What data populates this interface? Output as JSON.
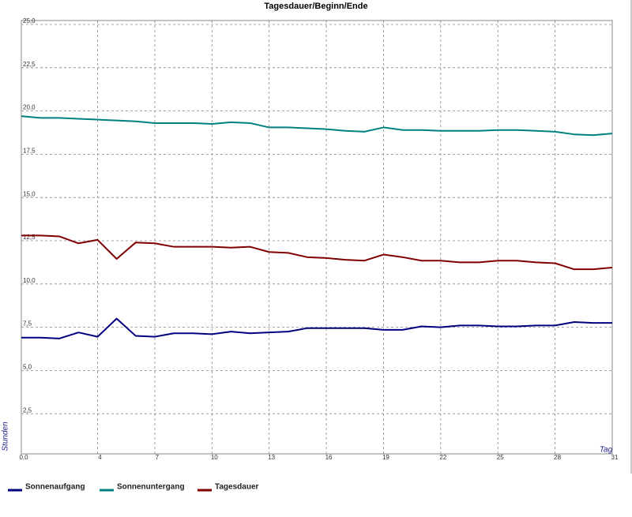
{
  "chart_data": {
    "type": "line",
    "title": "Tagesdauer/Beginn/Ende",
    "x_label": "Tag",
    "y_label": "Stunden",
    "xlim": [
      0,
      31
    ],
    "ylim": [
      0,
      25
    ],
    "grid": true,
    "xticks": [
      {
        "value": 0,
        "label": "0,0"
      },
      4,
      7,
      10,
      13,
      16,
      19,
      22,
      25,
      28,
      31
    ],
    "yticks": [
      {
        "value": 2.5,
        "label": "2,5"
      },
      {
        "value": 5,
        "label": "5,0"
      },
      {
        "value": 7.5,
        "label": "7,5"
      },
      {
        "value": 10,
        "label": "10,0"
      },
      {
        "value": 12.5,
        "label": "12,5"
      },
      {
        "value": 15,
        "label": "15,0"
      },
      {
        "value": 17.5,
        "label": "17,5"
      },
      {
        "value": 20,
        "label": "20,0"
      },
      {
        "value": 22.5,
        "label": "22,5"
      },
      {
        "value": 25,
        "label": "25,0"
      }
    ],
    "x": [
      0,
      1,
      2,
      3,
      4,
      5,
      6,
      7,
      8,
      9,
      10,
      11,
      12,
      13,
      14,
      15,
      16,
      17,
      18,
      19,
      20,
      21,
      22,
      23,
      24,
      25,
      26,
      27,
      28,
      29,
      30,
      31
    ],
    "series": [
      {
        "name": "Sonnenaufgang",
        "color": "#00007f",
        "values": [
          6.9,
          6.9,
          6.85,
          7.2,
          6.95,
          8.0,
          7.0,
          6.95,
          7.15,
          7.15,
          7.1,
          7.25,
          7.15,
          7.2,
          7.25,
          7.45,
          7.45,
          7.45,
          7.45,
          7.35,
          7.35,
          7.55,
          7.5,
          7.6,
          7.6,
          7.55,
          7.55,
          7.6,
          7.6,
          7.8,
          7.75,
          7.75
        ]
      },
      {
        "name": "Sonnenuntergang",
        "color": "#008080",
        "values": [
          19.7,
          19.6,
          19.6,
          19.55,
          19.5,
          19.45,
          19.4,
          19.3,
          19.3,
          19.3,
          19.25,
          19.35,
          19.3,
          19.05,
          19.05,
          19.0,
          18.95,
          18.85,
          18.8,
          19.05,
          18.9,
          18.9,
          18.85,
          18.85,
          18.85,
          18.9,
          18.9,
          18.85,
          18.8,
          18.65,
          18.6,
          18.7
        ]
      },
      {
        "name": "Tagesdauer",
        "color": "#800000",
        "values": [
          12.8,
          12.8,
          12.75,
          12.35,
          12.55,
          11.45,
          12.4,
          12.35,
          12.15,
          12.15,
          12.15,
          12.1,
          12.15,
          11.85,
          11.8,
          11.55,
          11.5,
          11.4,
          11.35,
          11.7,
          11.55,
          11.35,
          11.35,
          11.25,
          11.25,
          11.35,
          11.35,
          11.25,
          11.2,
          10.85,
          10.85,
          10.95
        ]
      }
    ]
  }
}
